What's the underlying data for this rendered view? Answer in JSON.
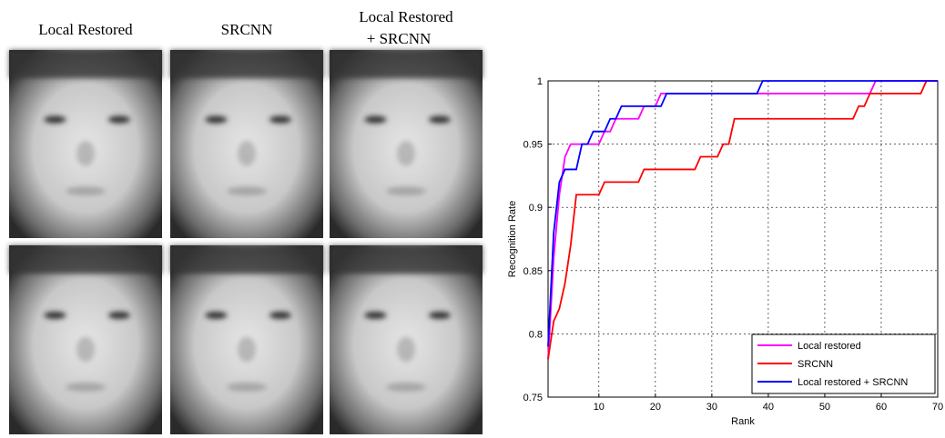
{
  "image_columns": [
    [
      "Local Restored"
    ],
    [
      "SRCNN"
    ],
    [
      "Local Restored",
      "+ SRCNN"
    ]
  ],
  "chart_data": {
    "type": "line",
    "xlabel": "Rank",
    "ylabel": "Recognition Rate",
    "x": [
      1,
      2,
      3,
      4,
      5,
      6,
      7,
      8,
      9,
      10,
      11,
      12,
      13,
      14,
      15,
      16,
      17,
      18,
      19,
      20,
      21,
      22,
      23,
      24,
      25,
      26,
      27,
      28,
      29,
      30,
      31,
      32,
      33,
      34,
      35,
      36,
      37,
      38,
      39,
      40,
      41,
      42,
      43,
      44,
      45,
      46,
      47,
      48,
      49,
      50,
      51,
      52,
      53,
      54,
      55,
      56,
      57,
      58,
      59,
      60,
      61,
      62,
      63,
      64,
      65,
      66,
      67,
      68,
      69,
      70
    ],
    "series": [
      {
        "name": "Local restored",
        "color": "#ff00ff",
        "values": [
          0.78,
          0.86,
          0.91,
          0.94,
          0.95,
          0.95,
          0.95,
          0.95,
          0.95,
          0.95,
          0.96,
          0.96,
          0.97,
          0.97,
          0.97,
          0.97,
          0.97,
          0.98,
          0.98,
          0.98,
          0.99,
          0.99,
          0.99,
          0.99,
          0.99,
          0.99,
          0.99,
          0.99,
          0.99,
          0.99,
          0.99,
          0.99,
          0.99,
          0.99,
          0.99,
          0.99,
          0.99,
          0.99,
          0.99,
          0.99,
          0.99,
          0.99,
          0.99,
          0.99,
          0.99,
          0.99,
          0.99,
          0.99,
          0.99,
          0.99,
          0.99,
          0.99,
          0.99,
          0.99,
          0.99,
          0.99,
          0.99,
          0.99,
          1,
          1,
          1,
          1,
          1,
          1,
          1,
          1,
          1,
          1,
          1,
          1
        ]
      },
      {
        "name": "SRCNN",
        "color": "#ff0000",
        "values": [
          0.78,
          0.81,
          0.82,
          0.84,
          0.87,
          0.91,
          0.91,
          0.91,
          0.91,
          0.91,
          0.92,
          0.92,
          0.92,
          0.92,
          0.92,
          0.92,
          0.92,
          0.93,
          0.93,
          0.93,
          0.93,
          0.93,
          0.93,
          0.93,
          0.93,
          0.93,
          0.93,
          0.94,
          0.94,
          0.94,
          0.94,
          0.95,
          0.95,
          0.97,
          0.97,
          0.97,
          0.97,
          0.97,
          0.97,
          0.97,
          0.97,
          0.97,
          0.97,
          0.97,
          0.97,
          0.97,
          0.97,
          0.97,
          0.97,
          0.97,
          0.97,
          0.97,
          0.97,
          0.97,
          0.97,
          0.98,
          0.98,
          0.99,
          0.99,
          0.99,
          0.99,
          0.99,
          0.99,
          0.99,
          0.99,
          0.99,
          0.99,
          1,
          1,
          1
        ]
      },
      {
        "name": "Local restored + SRCNN",
        "color": "#0000ff",
        "values": [
          0.79,
          0.88,
          0.92,
          0.93,
          0.93,
          0.93,
          0.95,
          0.95,
          0.96,
          0.96,
          0.96,
          0.97,
          0.97,
          0.98,
          0.98,
          0.98,
          0.98,
          0.98,
          0.98,
          0.98,
          0.98,
          0.99,
          0.99,
          0.99,
          0.99,
          0.99,
          0.99,
          0.99,
          0.99,
          0.99,
          0.99,
          0.99,
          0.99,
          0.99,
          0.99,
          0.99,
          0.99,
          0.99,
          1,
          1,
          1,
          1,
          1,
          1,
          1,
          1,
          1,
          1,
          1,
          1,
          1,
          1,
          1,
          1,
          1,
          1,
          1,
          1,
          1,
          1,
          1,
          1,
          1,
          1,
          1,
          1,
          1,
          1,
          1,
          1
        ]
      }
    ],
    "xlim": [
      1,
      70
    ],
    "xticks": [
      10,
      20,
      30,
      40,
      50,
      60,
      70
    ],
    "ylim": [
      0.75,
      1
    ],
    "yticks": [
      0.75,
      0.8,
      0.85,
      0.9,
      0.95,
      1
    ],
    "grid": true,
    "legend": "lower right"
  }
}
